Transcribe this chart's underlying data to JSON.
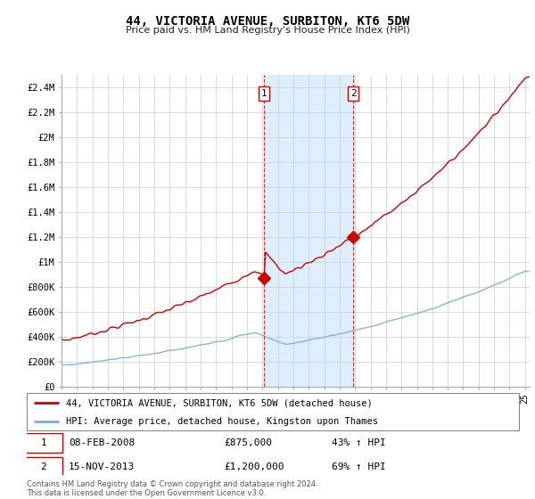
{
  "title": "44, VICTORIA AVENUE, SURBITON, KT6 5DW",
  "subtitle": "Price paid vs. HM Land Registry's House Price Index (HPI)",
  "ylim": [
    0,
    2500000
  ],
  "xlim_start": 1995.0,
  "xlim_end": 2025.3,
  "sale1_x": 2008.1,
  "sale1_y": 875000,
  "sale2_x": 2013.88,
  "sale2_y": 1200000,
  "vline1_x": 2008.1,
  "vline2_x": 2013.88,
  "shade_x1": 2008.1,
  "shade_x2": 2013.88,
  "legend_line1": "44, VICTORIA AVENUE, SURBITON, KT6 5DW (detached house)",
  "legend_line2": "HPI: Average price, detached house, Kingston upon Thames",
  "table_row1": [
    "1",
    "08-FEB-2008",
    "£875,000",
    "43% ↑ HPI"
  ],
  "table_row2": [
    "2",
    "15-NOV-2013",
    "£1,200,000",
    "69% ↑ HPI"
  ],
  "footnote": "Contains HM Land Registry data © Crown copyright and database right 2024.\nThis data is licensed under the Open Government Licence v3.0.",
  "line_color_property": "#cc0000",
  "line_color_hpi": "#7aabdb",
  "shade_color": "#ddeeff",
  "ytick_vals": [
    0,
    200000,
    400000,
    600000,
    800000,
    1000000,
    1200000,
    1400000,
    1600000,
    1800000,
    2000000,
    2200000,
    2400000
  ],
  "ytick_labels": [
    "£0",
    "£200K",
    "£400K",
    "£600K",
    "£800K",
    "£1M",
    "£1.2M",
    "£1.4M",
    "£1.6M",
    "£1.8M",
    "£2M",
    "£2.2M",
    "£2.4M"
  ]
}
